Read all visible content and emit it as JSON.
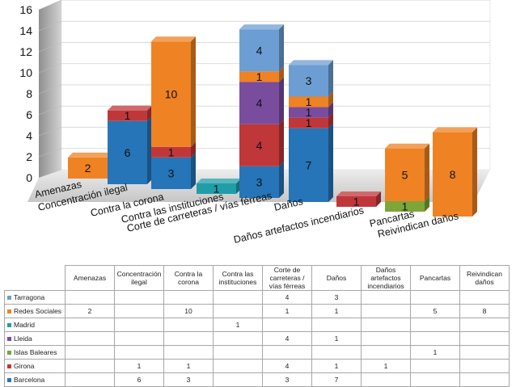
{
  "chart_data": {
    "type": "bar",
    "stacked": true,
    "three_d": true,
    "categories": [
      "Amenazas",
      "Concentración ilegal",
      "Contra la corona",
      "Contra las instituciones",
      "Corte de carreteras / vías férreas",
      "Daños",
      "Daños artefactos incendiarios",
      "Pancartas",
      "Reivindican daños"
    ],
    "table_headers": [
      "Amenazas",
      "Concentración ilegal",
      "Contra la corona",
      "Contra las instituciones",
      "Corte de carreteras / vías férreas",
      "Daños",
      "Daños artefactos incendiarios",
      "Pancartas",
      "Reivindican daños"
    ],
    "series": [
      {
        "name": "Tarragona",
        "color": "#6d9ed3",
        "values": [
          null,
          null,
          null,
          null,
          4,
          3,
          null,
          null,
          null
        ]
      },
      {
        "name": "Redes Sociales",
        "color": "#ef8222",
        "values": [
          2,
          null,
          10,
          null,
          1,
          1,
          null,
          5,
          8
        ]
      },
      {
        "name": "Madrid",
        "color": "#1f9ea8",
        "values": [
          null,
          null,
          null,
          1,
          null,
          null,
          null,
          null,
          null
        ]
      },
      {
        "name": "Lleida",
        "color": "#7a4c9e",
        "values": [
          null,
          null,
          null,
          null,
          4,
          1,
          null,
          null,
          null
        ]
      },
      {
        "name": "Islas Baleares",
        "color": "#7ea53a",
        "values": [
          null,
          null,
          null,
          null,
          null,
          null,
          null,
          1,
          null
        ]
      },
      {
        "name": "Girona",
        "color": "#c0373a",
        "values": [
          null,
          1,
          1,
          null,
          4,
          1,
          1,
          null,
          null
        ]
      },
      {
        "name": "Barcelona",
        "color": "#2575b8",
        "values": [
          null,
          6,
          3,
          null,
          3,
          7,
          null,
          null,
          null
        ]
      }
    ],
    "stack_order": [
      "Barcelona",
      "Girona",
      "Islas Baleares",
      "Lleida",
      "Madrid",
      "Redes Sociales",
      "Tarragona"
    ],
    "ylim": [
      0,
      16
    ],
    "yticks": [
      "0",
      "2",
      "4",
      "6",
      "8",
      "10",
      "12",
      "14",
      "16"
    ],
    "grid": true,
    "legend": "data table below chart"
  }
}
